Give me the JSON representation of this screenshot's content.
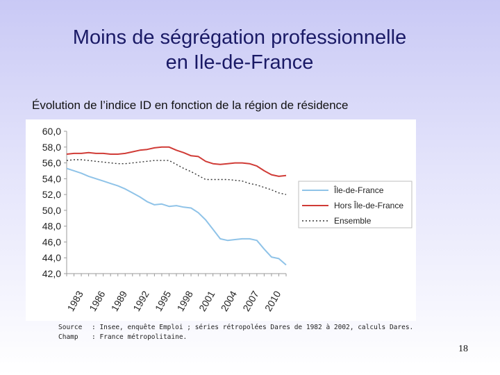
{
  "slide": {
    "title_line1": "Moins de ségrégation professionnelle",
    "title_line2": "en Ile-de-France",
    "subtitle": "Évolution de l’indice ID en fonction de la région de résidence",
    "source_label": "Source",
    "source_text": ": Insee, enquête Emploi ; séries rétropolées Dares de 1982 à 2002, calculs Dares.",
    "champ_label": "Champ",
    "champ_text": ": France métropolitaine.",
    "page_number": "18"
  },
  "colors": {
    "idf": "#8fc3e8",
    "hors": "#d03b36",
    "ensemble": "#333333",
    "axis": "#9a9a9a",
    "legend_border": "#bdbdbd"
  },
  "chart_data": {
    "type": "line",
    "title": "",
    "xlabel": "",
    "ylabel": "",
    "ylim": [
      42,
      60
    ],
    "xlim": [
      1982,
      2012
    ],
    "y_ticks": [
      "42,0",
      "44,0",
      "46,0",
      "48,0",
      "50,0",
      "52,0",
      "54,0",
      "56,0",
      "58,0",
      "60,0"
    ],
    "x_ticks": [
      "1983",
      "1986",
      "1989",
      "1992",
      "1995",
      "1998",
      "2001",
      "2004",
      "2007",
      "2010"
    ],
    "grid": false,
    "legend_position": "right",
    "x": [
      1982,
      1983,
      1984,
      1985,
      1986,
      1987,
      1988,
      1989,
      1990,
      1991,
      1992,
      1993,
      1994,
      1995,
      1996,
      1997,
      1998,
      1999,
      2000,
      2001,
      2002,
      2003,
      2004,
      2005,
      2006,
      2007,
      2008,
      2009,
      2010,
      2011,
      2012
    ],
    "series": [
      {
        "name": "Île-de-France",
        "style": "solid",
        "values": [
          55.3,
          55.0,
          54.7,
          54.3,
          54.0,
          53.7,
          53.4,
          53.1,
          52.7,
          52.2,
          51.7,
          51.1,
          50.7,
          50.8,
          50.5,
          50.6,
          50.4,
          50.3,
          49.7,
          48.8,
          47.6,
          46.4,
          46.2,
          46.3,
          46.4,
          46.4,
          46.2,
          45.1,
          44.1,
          43.9,
          43.1
        ]
      },
      {
        "name": "Hors Île-de-France",
        "style": "solid",
        "values": [
          57.1,
          57.2,
          57.2,
          57.3,
          57.2,
          57.2,
          57.1,
          57.1,
          57.2,
          57.4,
          57.6,
          57.7,
          57.9,
          58.0,
          58.0,
          57.6,
          57.3,
          56.9,
          56.8,
          56.2,
          55.9,
          55.8,
          55.9,
          56.0,
          56.0,
          55.9,
          55.6,
          55.0,
          54.5,
          54.3,
          54.4
        ]
      },
      {
        "name": "Ensemble",
        "style": "dotted",
        "values": [
          56.3,
          56.4,
          56.4,
          56.3,
          56.2,
          56.1,
          56.0,
          55.9,
          55.9,
          56.0,
          56.1,
          56.2,
          56.3,
          56.3,
          56.3,
          55.8,
          55.3,
          54.9,
          54.4,
          53.9,
          53.9,
          53.9,
          53.9,
          53.8,
          53.7,
          53.4,
          53.2,
          52.9,
          52.6,
          52.2,
          52.0
        ]
      }
    ]
  }
}
